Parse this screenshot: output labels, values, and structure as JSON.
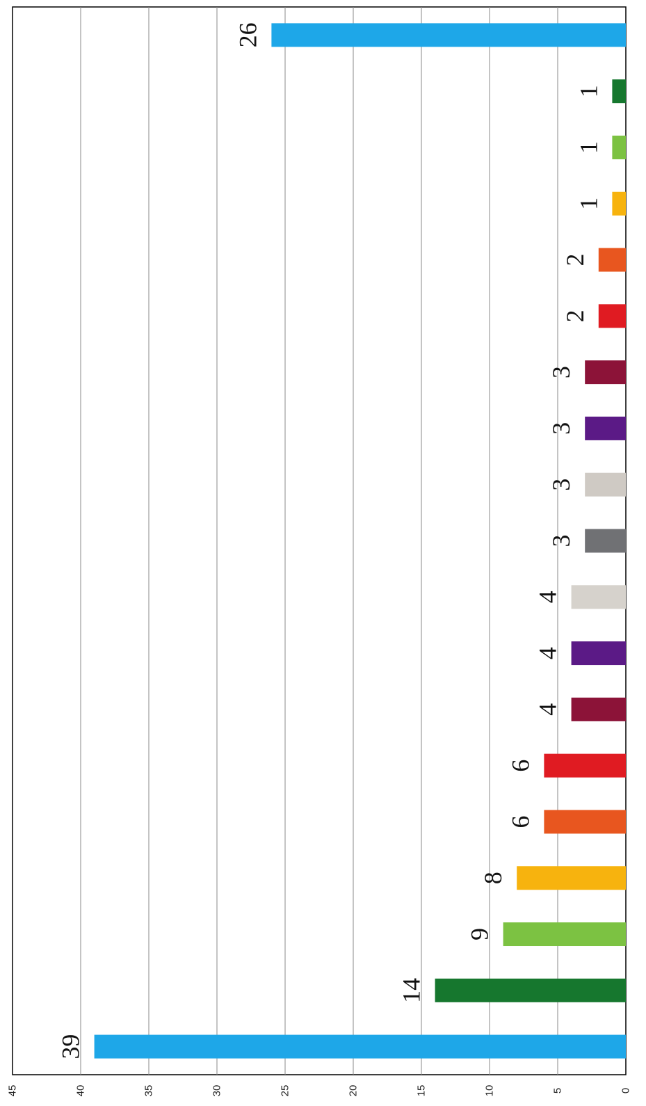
{
  "chart_data": {
    "type": "bar",
    "orientation": "rotated-90",
    "title": "",
    "xlabel": "",
    "ylabel": "",
    "ylim": [
      0,
      45
    ],
    "y_ticks": [
      "0",
      "5",
      "10",
      "15",
      "20",
      "25",
      "30",
      "35",
      "40",
      "45"
    ],
    "grid": true,
    "legend": "none",
    "values": [
      39,
      14,
      9,
      8,
      6,
      6,
      4,
      4,
      4,
      3,
      3,
      3,
      3,
      2,
      2,
      1,
      1,
      1,
      26
    ],
    "data_labels": [
      "39",
      "14",
      "9",
      "8",
      "6",
      "6",
      "4",
      "4",
      "4",
      "3",
      "3",
      "3",
      "3",
      "2",
      "2",
      "1",
      "1",
      "1",
      "26"
    ],
    "colors": [
      "#1ea7e8",
      "#16772e",
      "#7cc242",
      "#f7b30e",
      "#e8561f",
      "#e01b22",
      "#8c1338",
      "#5b1a86",
      "#d6d2cc",
      "#707174",
      "#cfcac4",
      "#5b1a86",
      "#8c1338",
      "#e01b22",
      "#e8561f",
      "#f7b30e",
      "#7cc242",
      "#16772e",
      "#1ea7e8"
    ]
  }
}
